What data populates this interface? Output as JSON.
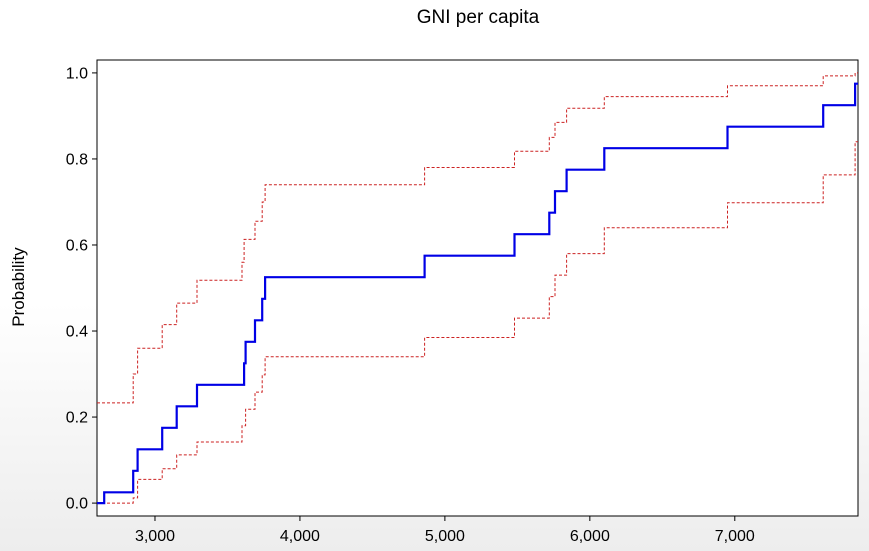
{
  "chart_data": {
    "type": "line",
    "title": "GNI per capita",
    "xlabel": "",
    "ylabel": "Probability",
    "xlim": [
      2600,
      7850
    ],
    "ylim": [
      -0.03,
      1.03
    ],
    "grid": false,
    "legend": "none",
    "x_ticks": [
      {
        "value": 3000,
        "label": "3,000"
      },
      {
        "value": 4000,
        "label": "4,000"
      },
      {
        "value": 5000,
        "label": "5,000"
      },
      {
        "value": 6000,
        "label": "6,000"
      },
      {
        "value": 7000,
        "label": "7,000"
      }
    ],
    "y_ticks": [
      {
        "value": 0.0,
        "label": "0.0"
      },
      {
        "value": 0.2,
        "label": "0.2"
      },
      {
        "value": 0.4,
        "label": "0.4"
      },
      {
        "value": 0.6,
        "label": "0.6"
      },
      {
        "value": 0.8,
        "label": "0.8"
      },
      {
        "value": 1.0,
        "label": "1.0"
      }
    ],
    "series": [
      {
        "role": "estimate",
        "color": "#0000e6",
        "style": "solid",
        "steps": [
          [
            2600,
            0.0
          ],
          [
            2650,
            0.025
          ],
          [
            2850,
            0.075
          ],
          [
            2880,
            0.125
          ],
          [
            3050,
            0.175
          ],
          [
            3150,
            0.225
          ],
          [
            3290,
            0.275
          ],
          [
            3615,
            0.325
          ],
          [
            3625,
            0.375
          ],
          [
            3690,
            0.425
          ],
          [
            3740,
            0.475
          ],
          [
            3760,
            0.525
          ],
          [
            4860,
            0.575
          ],
          [
            5480,
            0.625
          ],
          [
            5720,
            0.675
          ],
          [
            5760,
            0.725
          ],
          [
            5840,
            0.775
          ],
          [
            6100,
            0.825
          ],
          [
            6950,
            0.875
          ],
          [
            7610,
            0.925
          ],
          [
            7830,
            0.975
          ],
          [
            7850,
            0.975
          ]
        ]
      },
      {
        "role": "upper-bound",
        "color": "#cc2222",
        "style": "dashed",
        "steps": [
          [
            2600,
            0.233
          ],
          [
            2850,
            0.3
          ],
          [
            2880,
            0.36
          ],
          [
            3050,
            0.415
          ],
          [
            3150,
            0.465
          ],
          [
            3290,
            0.518
          ],
          [
            3600,
            0.56
          ],
          [
            3615,
            0.613
          ],
          [
            3690,
            0.655
          ],
          [
            3740,
            0.7
          ],
          [
            3760,
            0.74
          ],
          [
            4860,
            0.78
          ],
          [
            5480,
            0.818
          ],
          [
            5720,
            0.85
          ],
          [
            5760,
            0.885
          ],
          [
            5840,
            0.918
          ],
          [
            6100,
            0.945
          ],
          [
            6950,
            0.97
          ],
          [
            7610,
            0.993
          ],
          [
            7830,
            1.0
          ],
          [
            7850,
            1.0
          ]
        ]
      },
      {
        "role": "lower-bound",
        "color": "#cc2222",
        "style": "dashed",
        "steps": [
          [
            2600,
            0.0
          ],
          [
            2850,
            0.012
          ],
          [
            2880,
            0.055
          ],
          [
            3050,
            0.08
          ],
          [
            3150,
            0.112
          ],
          [
            3290,
            0.142
          ],
          [
            3600,
            0.18
          ],
          [
            3625,
            0.218
          ],
          [
            3690,
            0.258
          ],
          [
            3740,
            0.298
          ],
          [
            3760,
            0.34
          ],
          [
            4860,
            0.385
          ],
          [
            5480,
            0.43
          ],
          [
            5720,
            0.48
          ],
          [
            5760,
            0.53
          ],
          [
            5840,
            0.58
          ],
          [
            6100,
            0.64
          ],
          [
            6950,
            0.698
          ],
          [
            7610,
            0.763
          ],
          [
            7830,
            0.84
          ],
          [
            7850,
            0.84
          ]
        ]
      }
    ]
  }
}
